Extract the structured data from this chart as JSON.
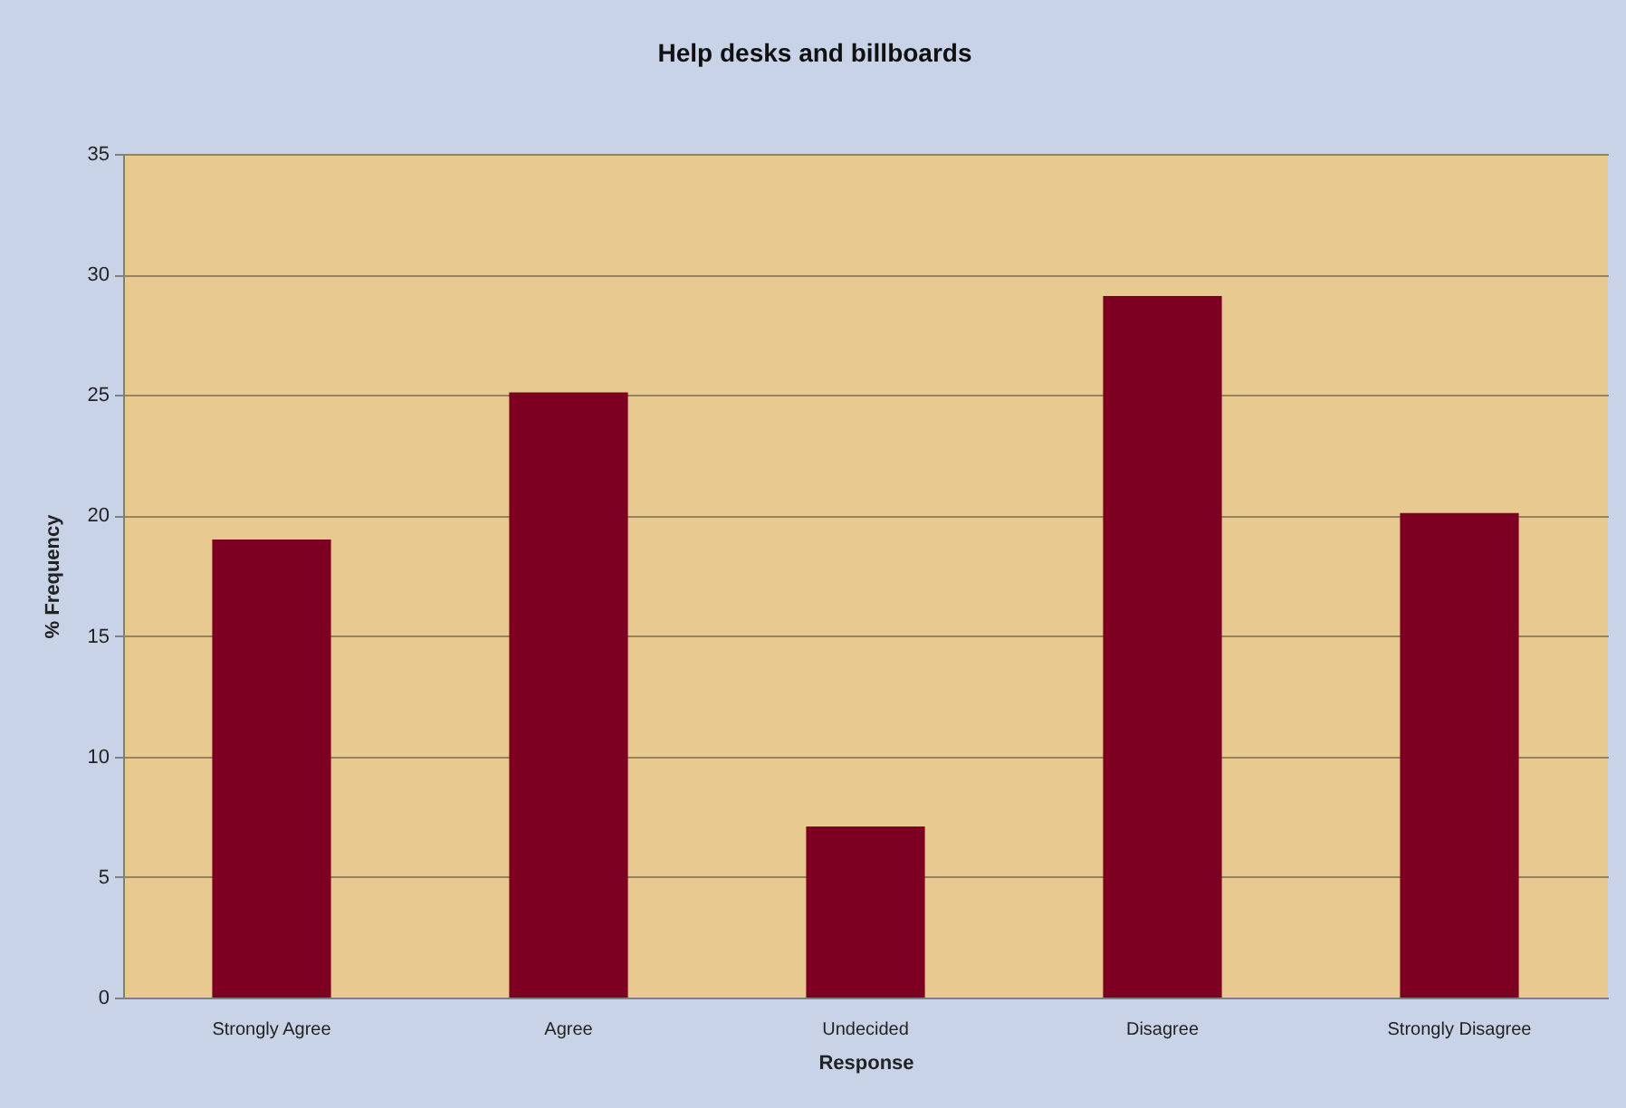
{
  "chart_data": {
    "type": "bar",
    "title": "Help desks and billboards",
    "xlabel": "Response",
    "ylabel": "% Frequency",
    "categories": [
      "Strongly Agree",
      "Agree",
      "Undecided",
      "Disagree",
      "Strongly Disagree"
    ],
    "values": [
      19.0,
      25.1,
      7.1,
      29.1,
      20.1
    ],
    "color": "#7d0022",
    "ylim": [
      0,
      35
    ],
    "yticks": [
      0,
      5,
      10,
      15,
      20,
      25,
      30,
      35
    ],
    "grid": "y"
  }
}
